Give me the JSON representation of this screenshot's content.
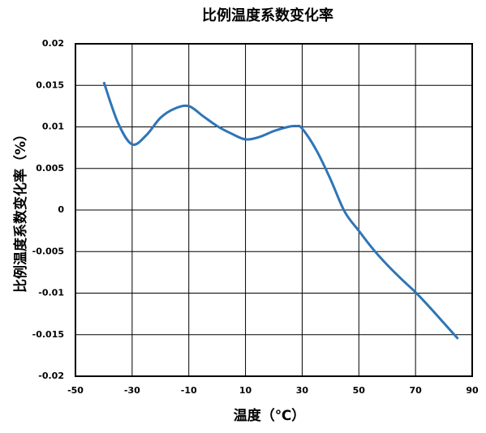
{
  "chart_data": {
    "type": "line",
    "title": "比例温度系数变化率",
    "x_label": "温度（℃）",
    "y_label": "比例温度系数变化率（%）",
    "x": [
      -40,
      -35,
      -30,
      -25,
      -20,
      -15,
      -10,
      -5,
      0,
      5,
      10,
      15,
      20,
      25,
      28,
      30,
      35,
      40,
      45,
      50,
      55,
      60,
      65,
      70,
      75,
      80,
      85
    ],
    "series": [
      {
        "name": "比例温度系数变化率",
        "color": "#2e75b6",
        "values": [
          0.0154,
          0.0105,
          0.0079,
          0.009,
          0.0111,
          0.0122,
          0.0125,
          0.0113,
          0.0101,
          0.0092,
          0.0085,
          0.0088,
          0.0095,
          0.01,
          0.0101,
          0.0098,
          0.0072,
          0.0037,
          -0.0002,
          -0.0025,
          -0.0047,
          -0.0066,
          -0.0083,
          -0.0099,
          -0.0117,
          -0.0136,
          -0.0155
        ]
      }
    ],
    "xlim": [
      -50,
      90
    ],
    "xticks": [
      -50,
      -30,
      -10,
      10,
      30,
      50,
      70,
      90
    ],
    "ylim": [
      -0.02,
      0.02
    ],
    "yticks": [
      0.02,
      0.015,
      0.01,
      0.005,
      0,
      -0.005,
      -0.01,
      -0.015,
      -0.02
    ],
    "grid": true
  }
}
